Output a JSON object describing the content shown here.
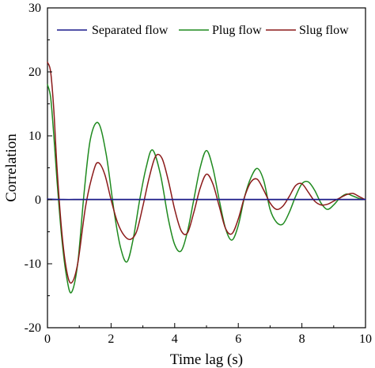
{
  "chart_data": {
    "type": "line",
    "title": "",
    "xlabel": "Time lag (s)",
    "ylabel": "Correlation",
    "xlim": [
      0,
      10
    ],
    "ylim": [
      -20,
      30
    ],
    "xticks": [
      0,
      2,
      4,
      6,
      8,
      10
    ],
    "yticks": [
      -20,
      -10,
      0,
      10,
      20,
      30
    ],
    "grid": false,
    "legend_placement": "top",
    "series": [
      {
        "name": "Separated flow",
        "color": "#1a1a8c",
        "x": [
          0,
          0.5,
          1,
          1.5,
          2,
          2.5,
          3,
          3.5,
          4,
          4.5,
          5,
          5.5,
          6,
          6.5,
          7,
          7.5,
          8,
          8.5,
          9,
          9.5,
          10
        ],
        "y": [
          0.1,
          0.05,
          0.05,
          0.05,
          0.05,
          0.05,
          0.05,
          0.05,
          0.05,
          0.05,
          0.05,
          0.05,
          0.05,
          0.05,
          0.05,
          0.05,
          0.05,
          0.05,
          0.05,
          0.05,
          0.05
        ]
      },
      {
        "name": "Plug flow",
        "color": "#1f8a1f",
        "x": [
          0,
          0.1,
          0.2,
          0.3,
          0.45,
          0.6,
          0.75,
          0.95,
          1.15,
          1.35,
          1.6,
          1.85,
          2.1,
          2.3,
          2.5,
          2.7,
          2.9,
          3.1,
          3.3,
          3.55,
          3.8,
          4.0,
          4.2,
          4.4,
          4.6,
          4.8,
          5.0,
          5.2,
          5.4,
          5.6,
          5.8,
          6.0,
          6.2,
          6.4,
          6.6,
          6.8,
          7.0,
          7.2,
          7.4,
          7.6,
          7.8,
          8.0,
          8.2,
          8.4,
          8.6,
          8.8,
          9.0,
          9.2,
          9.4,
          9.6,
          9.8,
          10.0
        ],
        "y": [
          18,
          16,
          10,
          3,
          -6,
          -12,
          -14.5,
          -10,
          1,
          9.5,
          12,
          7,
          -2,
          -7.5,
          -9.7,
          -6,
          0,
          5,
          7.8,
          4,
          -3,
          -7,
          -8,
          -5,
          0,
          5,
          7.7,
          5,
          0,
          -4.5,
          -6.3,
          -4,
          0.5,
          3.5,
          4.9,
          3,
          -1.5,
          -3.5,
          -3.8,
          -2,
          0.5,
          2.5,
          2.8,
          1.5,
          -0.5,
          -1.5,
          -0.8,
          0.3,
          0.9,
          0.6,
          0.2,
          0
        ]
      },
      {
        "name": "Slug flow",
        "color": "#8b1a1a",
        "x": [
          0,
          0.1,
          0.2,
          0.3,
          0.45,
          0.6,
          0.75,
          0.95,
          1.2,
          1.45,
          1.6,
          1.8,
          2.0,
          2.2,
          2.4,
          2.6,
          2.8,
          3.0,
          3.2,
          3.4,
          3.6,
          3.8,
          4.0,
          4.2,
          4.4,
          4.6,
          4.8,
          5.0,
          5.2,
          5.4,
          5.6,
          5.8,
          6.0,
          6.2,
          6.4,
          6.6,
          6.8,
          7.0,
          7.2,
          7.4,
          7.6,
          7.8,
          8.0,
          8.2,
          8.4,
          8.6,
          8.8,
          9.0,
          9.2,
          9.4,
          9.6,
          9.8,
          10.0
        ],
        "y": [
          21.5,
          20,
          14,
          5,
          -5,
          -11,
          -13,
          -10,
          -1,
          4.5,
          5.8,
          4,
          0,
          -3.5,
          -5.5,
          -6.2,
          -5,
          -1,
          3.5,
          6.8,
          6.5,
          3,
          -1.5,
          -4.8,
          -5.2,
          -2,
          1.8,
          4,
          2.5,
          -1,
          -4.5,
          -5.3,
          -3,
          0.5,
          2.8,
          3.2,
          1.5,
          -0.5,
          -1.5,
          -1,
          0.5,
          2.2,
          2.5,
          1.2,
          -0.2,
          -0.8,
          -0.7,
          -0.2,
          0.3,
          0.8,
          1.0,
          0.5,
          0
        ]
      }
    ]
  }
}
